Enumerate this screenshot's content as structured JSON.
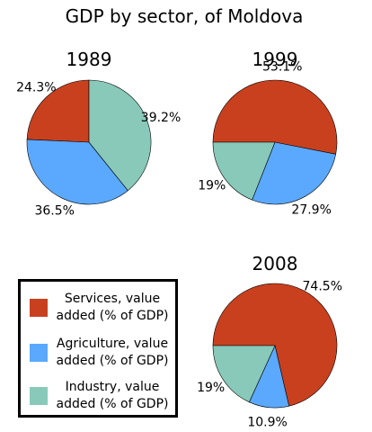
{
  "chart_data": {
    "type": "pie",
    "title": "GDP by sector, of Moldova",
    "series_names": [
      "Services, value\nadded (% of GDP)",
      "Agriculture, value\nadded (% of GDP)",
      "Industry, value\nadded (% of GDP)"
    ],
    "colors": [
      "#c9401f",
      "#5aa9ff",
      "#88c9b9"
    ],
    "legend_position": "lower-left",
    "pies": [
      {
        "title": "1989",
        "values": [
          24.3,
          36.5,
          39.2
        ],
        "labels": [
          "24.3%",
          "36.5%",
          "39.2%"
        ]
      },
      {
        "title": "1999",
        "values": [
          53.1,
          27.9,
          19.0
        ],
        "labels": [
          "53.1%",
          "27.9%",
          "19%"
        ]
      },
      {
        "title": "2008",
        "values": [
          74.5,
          10.9,
          19.0
        ],
        "labels": [
          "74.5%",
          "10.9%",
          "19%"
        ]
      }
    ]
  }
}
